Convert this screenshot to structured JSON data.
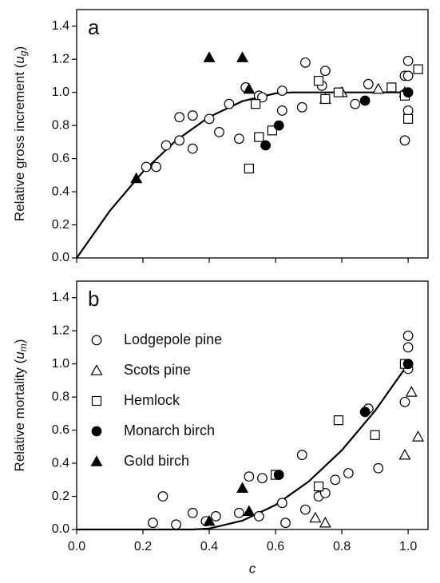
{
  "chart_data": [
    {
      "type": "scatter",
      "panel": "a",
      "y_label": [
        "Relative gross increment (",
        "u",
        "g",
        ")"
      ],
      "xlim": [
        0,
        1.06
      ],
      "ylim": [
        0,
        1.5
      ],
      "xticks": [
        0,
        0.2,
        0.4,
        0.6,
        0.8,
        1.0
      ],
      "yticks": [
        {
          "value": 0,
          "label": "0.0"
        },
        {
          "value": 0.2,
          "label": "0.2"
        },
        {
          "value": 0.4,
          "label": "0.4"
        },
        {
          "value": 0.6,
          "label": "0.6"
        },
        {
          "value": 0.8,
          "label": "0.8"
        },
        {
          "value": 1.0,
          "label": "1.0"
        },
        {
          "value": 1.2,
          "label": "1.2"
        },
        {
          "value": 1.4,
          "label": "1.4"
        }
      ],
      "series": [
        {
          "marker": "circle",
          "filled": false,
          "color": "#000000",
          "x": [
            0.21,
            0.24,
            0.27,
            0.31,
            0.31,
            0.35,
            0.35,
            0.4,
            0.43,
            0.46,
            0.49,
            0.51,
            0.55,
            0.56,
            0.62,
            0.62,
            0.68,
            0.69,
            0.74,
            0.75,
            0.84,
            0.88,
            0.99,
            0.99,
            1.0,
            1.0,
            1.0,
            0.99
          ],
          "y": [
            0.55,
            0.55,
            0.68,
            0.71,
            0.85,
            0.86,
            0.66,
            0.84,
            0.76,
            0.93,
            0.72,
            1.03,
            0.98,
            0.97,
            0.89,
            1.01,
            0.91,
            1.18,
            1.04,
            1.13,
            0.93,
            1.05,
            1.1,
            0.71,
            1.19,
            1.1,
            0.89,
            0.99
          ]
        },
        {
          "marker": "triangle",
          "filled": false,
          "color": "#000000",
          "x": [
            0.75,
            0.8,
            0.91,
            0.99
          ],
          "y": [
            0.96,
            1.0,
            1.02,
            1.0
          ]
        },
        {
          "marker": "square",
          "filled": false,
          "color": "#000000",
          "x": [
            0.52,
            0.54,
            0.55,
            0.59,
            0.73,
            0.75,
            0.79,
            0.95,
            0.99,
            1.0,
            1.03
          ],
          "y": [
            0.54,
            0.93,
            0.73,
            0.77,
            1.07,
            0.96,
            1.0,
            1.03,
            0.98,
            0.84,
            1.14
          ]
        },
        {
          "marker": "circle",
          "filled": true,
          "color": "#000000",
          "x": [
            0.57,
            0.61,
            0.87,
            1.0
          ],
          "y": [
            0.68,
            0.8,
            0.95,
            1.0
          ]
        },
        {
          "marker": "triangle",
          "filled": true,
          "color": "#000000",
          "x": [
            0.18,
            0.4,
            0.5,
            0.52
          ],
          "y": [
            0.48,
            1.21,
            1.21,
            1.02
          ]
        }
      ],
      "curve": {
        "x": [
          0,
          0.1,
          0.2,
          0.3,
          0.4,
          0.5,
          0.6,
          0.65,
          0.8,
          1.0
        ],
        "y": [
          0,
          0.284,
          0.521,
          0.71,
          0.852,
          0.947,
          0.994,
          1.0,
          1.0,
          1.0
        ]
      }
    },
    {
      "type": "scatter",
      "panel": "b",
      "y_label": [
        "Relative mortality (",
        "u",
        "m",
        ")"
      ],
      "x_label": "c",
      "xlim": [
        0,
        1.06
      ],
      "ylim": [
        0,
        1.5
      ],
      "xticks": [
        {
          "value": 0,
          "label": "0.0"
        },
        {
          "value": 0.2,
          "label": "0.2"
        },
        {
          "value": 0.4,
          "label": "0.4"
        },
        {
          "value": 0.6,
          "label": "0.6"
        },
        {
          "value": 0.8,
          "label": "0.8"
        },
        {
          "value": 1.0,
          "label": "1.0"
        }
      ],
      "yticks": [
        {
          "value": 0,
          "label": "0.0"
        },
        {
          "value": 0.2,
          "label": "0.2"
        },
        {
          "value": 0.4,
          "label": "0.4"
        },
        {
          "value": 0.6,
          "label": "0.6"
        },
        {
          "value": 0.8,
          "label": "0.8"
        },
        {
          "value": 1.0,
          "label": "1.0"
        },
        {
          "value": 1.2,
          "label": "1.2"
        },
        {
          "value": 1.4,
          "label": "1.4"
        }
      ],
      "legend": "upper-left",
      "series": [
        {
          "name": "Lodgepole pine",
          "marker": "circle",
          "filled": false,
          "color": "#000000",
          "x": [
            0.23,
            0.26,
            0.3,
            0.35,
            0.39,
            0.42,
            0.49,
            0.52,
            0.56,
            0.55,
            0.62,
            0.63,
            0.68,
            0.69,
            0.73,
            0.75,
            0.78,
            0.82,
            0.88,
            0.91,
            0.99,
            1.0,
            1.0,
            1.0
          ],
          "y": [
            0.04,
            0.2,
            0.03,
            0.1,
            0.05,
            0.08,
            0.1,
            0.32,
            0.31,
            0.08,
            0.16,
            0.04,
            0.45,
            0.12,
            0.2,
            0.22,
            0.3,
            0.34,
            0.73,
            0.37,
            0.77,
            1.17,
            1.1,
            0.97
          ]
        },
        {
          "name": "Scots pine",
          "marker": "triangle",
          "filled": false,
          "color": "#000000",
          "x": [
            0.72,
            0.75,
            0.99,
            1.01,
            1.03
          ],
          "y": [
            0.07,
            0.04,
            0.45,
            0.83,
            0.56
          ]
        },
        {
          "name": "Hemlock",
          "marker": "square",
          "filled": false,
          "color": "#000000",
          "x": [
            0.6,
            0.73,
            0.79,
            0.9,
            0.99
          ],
          "y": [
            0.33,
            0.26,
            0.66,
            0.57,
            1.0
          ]
        },
        {
          "name": "Monarch birch",
          "marker": "circle",
          "filled": true,
          "color": "#000000",
          "x": [
            0.61,
            0.87,
            1.0
          ],
          "y": [
            0.33,
            0.71,
            1.0
          ]
        },
        {
          "name": "Gold birch",
          "marker": "triangle",
          "filled": true,
          "color": "#000000",
          "x": [
            0.4,
            0.5,
            0.52
          ],
          "y": [
            0.05,
            0.25,
            0.11
          ]
        }
      ],
      "curve": {
        "x": [
          0,
          0.35,
          0.4,
          0.5,
          0.6,
          0.7,
          0.8,
          0.9,
          1.0
        ],
        "y": [
          0,
          0,
          0.006,
          0.053,
          0.148,
          0.29,
          0.479,
          0.716,
          1.0
        ]
      }
    }
  ]
}
